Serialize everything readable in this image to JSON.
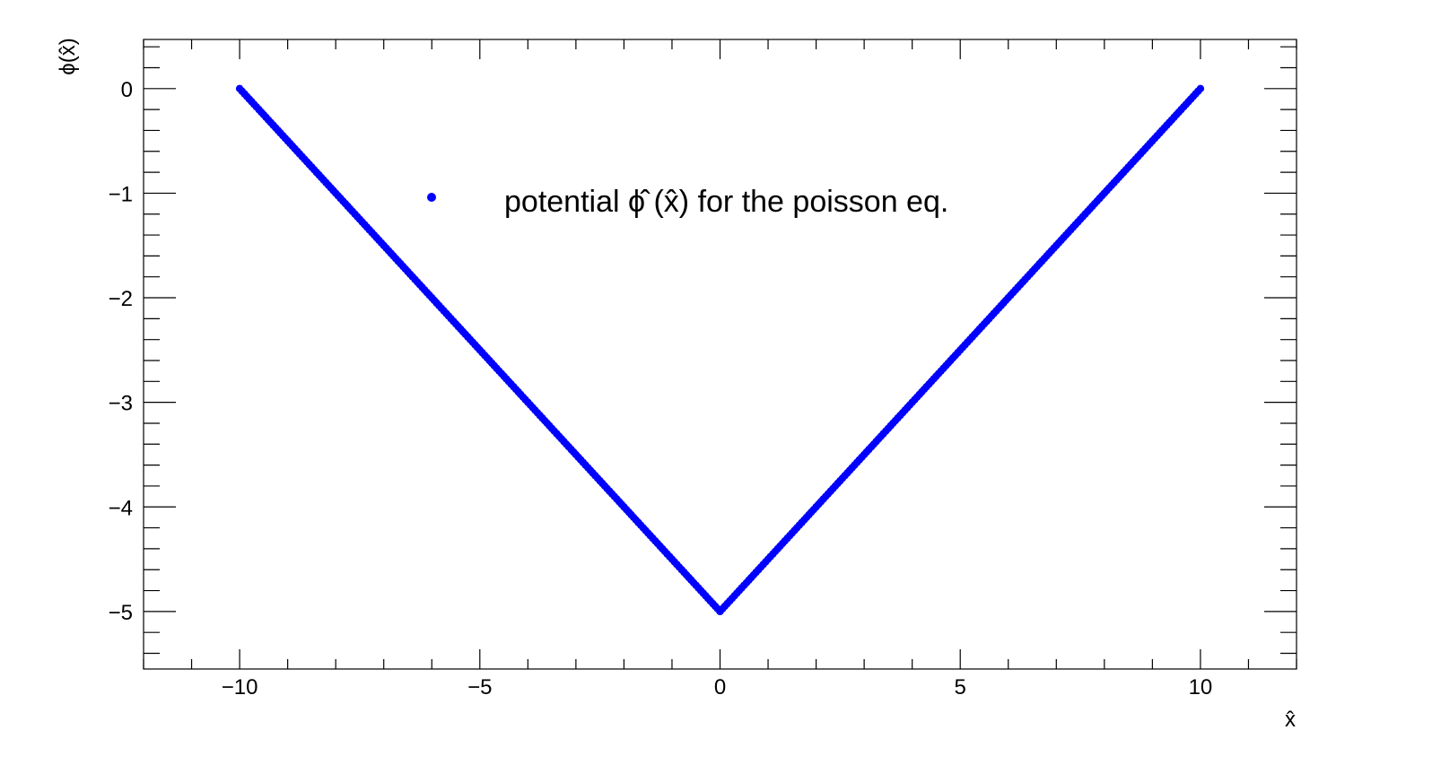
{
  "chart_data": {
    "type": "scatter",
    "title": "",
    "xlabel": "x̂",
    "ylabel": "ϕ(x̂)",
    "xlim": [
      -12,
      12
    ],
    "ylim": [
      -5.55,
      0.47
    ],
    "x_ticks": [
      -10,
      -5,
      0,
      5,
      10
    ],
    "x_tick_labels": [
      "−10",
      "−5",
      "0",
      "5",
      "10"
    ],
    "y_ticks": [
      0,
      -1,
      -2,
      -3,
      -4,
      -5
    ],
    "y_tick_labels": [
      "0",
      "−1",
      "−2",
      "−3",
      "−4",
      "−5"
    ],
    "grid": false,
    "legend_position": "top-center",
    "series": [
      {
        "name": "potential ϕ̂ (x̂) for the poisson eq.",
        "color": "#0000ff",
        "marker": "circle",
        "x_range": [
          -10,
          10
        ],
        "point_count": 401,
        "relation": "y = |x|/2 - 5",
        "sample_points": [
          {
            "x": -10,
            "y": 0
          },
          {
            "x": -5,
            "y": -2.5
          },
          {
            "x": 0,
            "y": -5
          },
          {
            "x": 5,
            "y": -2.5
          },
          {
            "x": 10,
            "y": 0
          }
        ]
      }
    ]
  }
}
